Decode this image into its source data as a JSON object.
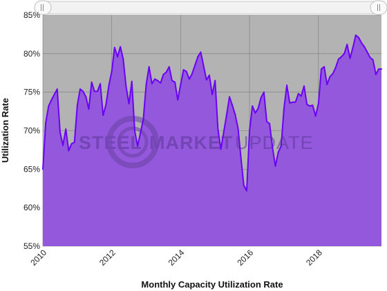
{
  "chart_data": {
    "type": "area",
    "xlabel": "Monthly Capacity Utilization Rate",
    "ylabel": "Utilization Rate",
    "y_tick_labels": [
      "55%",
      "60%",
      "65%",
      "70%",
      "75%",
      "80%",
      "85%"
    ],
    "y_ticks": [
      55,
      60,
      65,
      70,
      75,
      80,
      85
    ],
    "ylim": [
      55,
      85
    ],
    "x_tick_labels": [
      "2010",
      "2012",
      "2014",
      "2016",
      "2018"
    ],
    "x_ticks": [
      2010,
      2012,
      2014,
      2016,
      2018
    ],
    "xlim": [
      2010.0,
      2019.83
    ],
    "grid": true,
    "colors": {
      "line": "#6a00f4",
      "fill": "#9358dc",
      "plot_background": "#b3b3b3",
      "grid": "#7a7a7a",
      "watermark": "#7b4fb5"
    },
    "watermark": {
      "word1": "STEEL",
      "word2": "MARKET",
      "word3": "UPDATE"
    },
    "navigator": {
      "handle_left_icon": "drag-handle-icon",
      "handle_right_icon": "drag-handle-icon"
    },
    "series": [
      {
        "x": [
          2010.0,
          2010.083,
          2010.167,
          2010.25,
          2010.333,
          2010.417,
          2010.5,
          2010.583,
          2010.667,
          2010.75,
          2010.833,
          2010.917,
          2011.0,
          2011.083,
          2011.167,
          2011.25,
          2011.333,
          2011.417,
          2011.5,
          2011.583,
          2011.667,
          2011.75,
          2011.833,
          2011.917,
          2012.0,
          2012.083,
          2012.167,
          2012.25,
          2012.333,
          2012.417,
          2012.5,
          2012.583,
          2012.667,
          2012.75,
          2012.833,
          2012.917,
          2013.0,
          2013.083,
          2013.167,
          2013.25,
          2013.333,
          2013.417,
          2013.5,
          2013.583,
          2013.667,
          2013.75,
          2013.833,
          2013.917,
          2014.0,
          2014.083,
          2014.167,
          2014.25,
          2014.333,
          2014.417,
          2014.5,
          2014.583,
          2014.667,
          2014.75,
          2014.833,
          2014.917,
          2015.0,
          2015.083,
          2015.167,
          2015.25,
          2015.333,
          2015.417,
          2015.5,
          2015.583,
          2015.667,
          2015.75,
          2015.833,
          2015.917,
          2016.0,
          2016.083,
          2016.167,
          2016.25,
          2016.333,
          2016.417,
          2016.5,
          2016.583,
          2016.667,
          2016.75,
          2016.833,
          2016.917,
          2017.0,
          2017.083,
          2017.167,
          2017.25,
          2017.333,
          2017.417,
          2017.5,
          2017.583,
          2017.667,
          2017.75,
          2017.833,
          2017.917,
          2018.0,
          2018.083,
          2018.167,
          2018.25,
          2018.333,
          2018.417,
          2018.5,
          2018.583,
          2018.667,
          2018.75,
          2018.833,
          2018.917,
          2019.0,
          2019.083,
          2019.167,
          2019.25,
          2019.333,
          2019.417,
          2019.5,
          2019.583,
          2019.667,
          2019.75,
          2019.83
        ],
        "values": [
          65.0,
          71.0,
          73.2,
          74.0,
          74.7,
          75.4,
          69.8,
          68.1,
          70.2,
          67.4,
          68.3,
          68.5,
          73.3,
          75.4,
          75.1,
          74.4,
          72.8,
          76.3,
          75.1,
          75.1,
          76.1,
          72.0,
          73.4,
          75.9,
          77.7,
          80.8,
          79.6,
          80.9,
          79.3,
          75.7,
          73.5,
          76.4,
          70.0,
          68.0,
          69.7,
          71.5,
          76.0,
          78.3,
          76.1,
          76.7,
          76.5,
          76.2,
          77.3,
          77.6,
          78.3,
          76.5,
          76.3,
          74.0,
          76.0,
          77.9,
          77.7,
          76.7,
          77.4,
          78.5,
          79.6,
          80.2,
          78.4,
          76.6,
          77.2,
          74.7,
          76.5,
          70.2,
          67.6,
          69.8,
          72.0,
          74.4,
          73.3,
          72.1,
          70.3,
          66.5,
          62.9,
          62.2,
          70.0,
          73.2,
          72.3,
          72.9,
          74.3,
          75.0,
          71.2,
          70.9,
          67.8,
          65.4,
          67.2,
          68.0,
          72.9,
          75.9,
          73.6,
          73.7,
          73.7,
          74.8,
          74.5,
          75.8,
          73.4,
          73.2,
          73.3,
          71.9,
          73.5,
          78.0,
          78.3,
          76.0,
          77.0,
          77.4,
          78.2,
          79.3,
          79.6,
          80.0,
          81.2,
          79.4,
          80.8,
          82.4,
          82.1,
          81.4,
          80.9,
          80.2,
          79.5,
          79.2,
          77.3,
          78.0,
          78.0
        ]
      }
    ]
  }
}
